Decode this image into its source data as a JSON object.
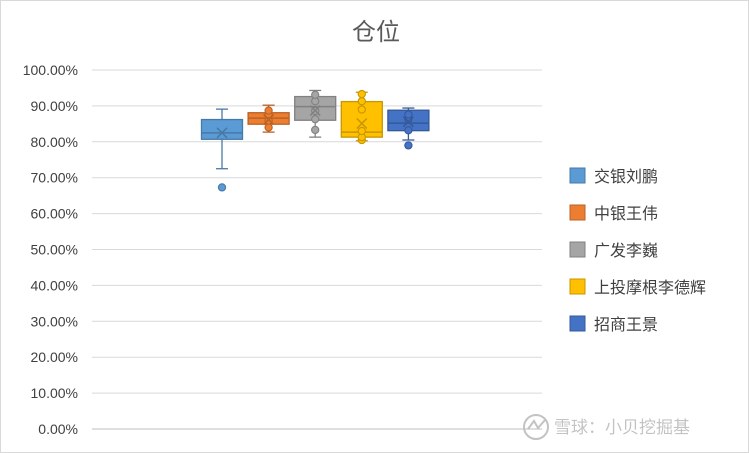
{
  "chart_data": {
    "type": "box",
    "title": "仓位",
    "xlabel": "",
    "ylabel": "",
    "ylim": [
      0,
      100
    ],
    "y_ticks": [
      "0.00%",
      "10.00%",
      "20.00%",
      "30.00%",
      "40.00%",
      "50.00%",
      "60.00%",
      "70.00%",
      "80.00%",
      "90.00%",
      "100.00%"
    ],
    "grid": true,
    "legend_position": "right",
    "series": [
      {
        "name": "交银刘鹏",
        "color": "#5b9bd5",
        "min": 72.5,
        "q1": 80.7,
        "median": 82.5,
        "mean": 82.5,
        "q3": 86.2,
        "max": 89.1,
        "inner_points": [],
        "outliers": [
          67.3
        ]
      },
      {
        "name": "中银王伟",
        "color": "#ed7d31",
        "min": 82.7,
        "q1": 84.9,
        "median": 86.6,
        "mean": 86.2,
        "q3": 88.1,
        "max": 90.2,
        "inner_points": [
          84.0,
          85.9,
          87.7,
          88.7
        ],
        "outliers": []
      },
      {
        "name": "广发李巍",
        "color": "#a5a5a5",
        "min": 81.3,
        "q1": 86.0,
        "median": 89.8,
        "mean": 88.7,
        "q3": 92.6,
        "max": 94.3,
        "inner_points": [
          83.3,
          86.3,
          88.6,
          91.3,
          93.1
        ],
        "outliers": []
      },
      {
        "name": "上投摩根李德辉",
        "color": "#ffc000",
        "min": 80.3,
        "q1": 81.3,
        "median": 82.7,
        "mean": 85.1,
        "q3": 91.2,
        "max": 93.8,
        "inner_points": [
          80.5,
          81.3,
          83.0,
          89.0,
          91.3,
          93.3
        ],
        "outliers": []
      },
      {
        "name": "招商王景",
        "color": "#4472c4",
        "min": 80.5,
        "q1": 83.1,
        "median": 85.2,
        "mean": 85.6,
        "q3": 88.8,
        "max": 89.4,
        "inner_points": [
          83.2,
          86.3,
          87.6
        ],
        "outliers": [
          79.0
        ]
      }
    ]
  },
  "watermark": {
    "logo": "snowball-logo",
    "text": "雪球：小贝挖掘基"
  }
}
